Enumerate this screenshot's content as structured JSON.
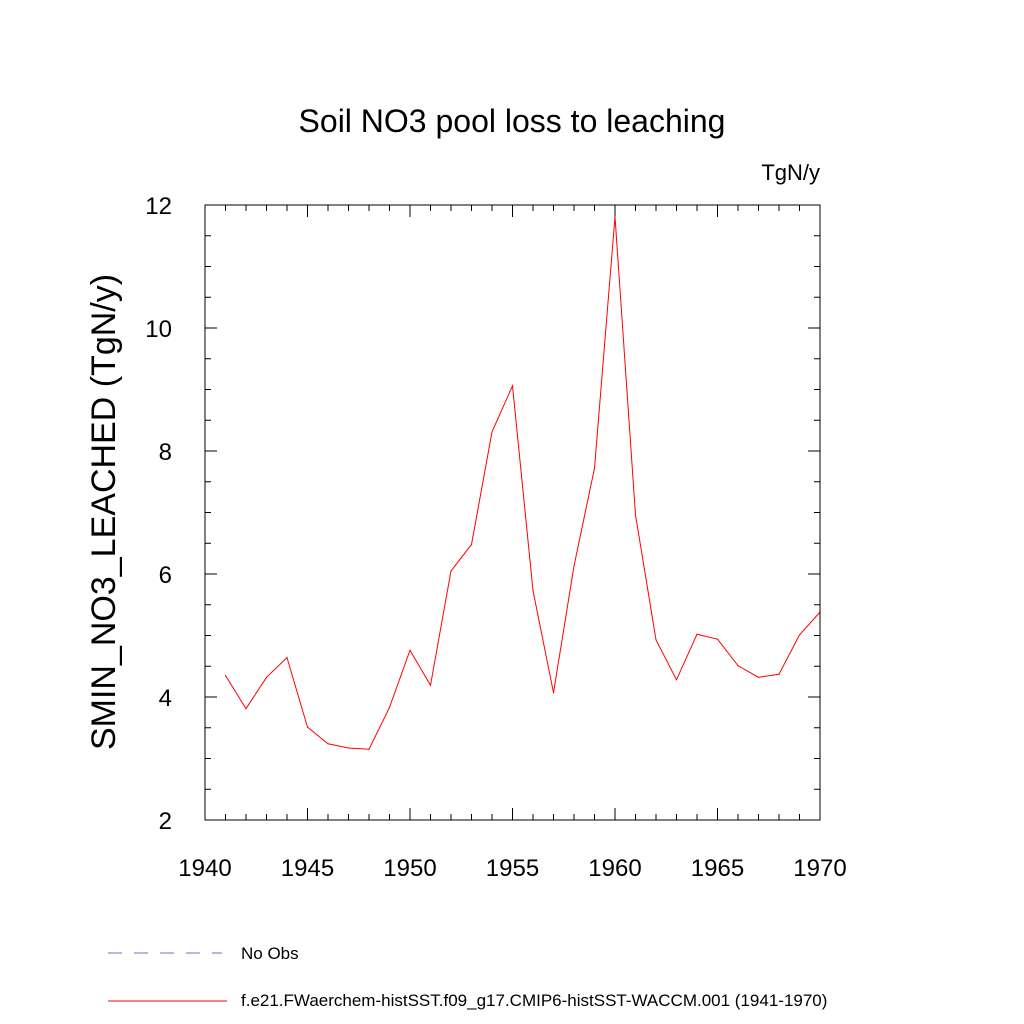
{
  "chart_data": {
    "type": "line",
    "title": "Soil NO3 pool loss to leaching",
    "units": "TgN/y",
    "xlabel": "",
    "ylabel": "SMIN_NO3_LEACHED  (TgN/y)",
    "xlim": [
      1940,
      1970
    ],
    "ylim": [
      2,
      12
    ],
    "x_ticks": [
      1940,
      1945,
      1950,
      1955,
      1960,
      1965,
      1970
    ],
    "x_tick_labels": [
      "1940",
      "1945",
      "1950",
      "1955",
      "1960",
      "1965",
      "1970"
    ],
    "y_ticks": [
      2,
      4,
      6,
      8,
      10,
      12
    ],
    "y_tick_labels": [
      "2",
      "4",
      "6",
      "8",
      "10",
      "12"
    ],
    "grid": false,
    "x": [
      1941,
      1942,
      1943,
      1944,
      1945,
      1946,
      1947,
      1948,
      1949,
      1950,
      1951,
      1952,
      1953,
      1954,
      1955,
      1956,
      1957,
      1958,
      1959,
      1960,
      1961,
      1962,
      1963,
      1964,
      1965,
      1966,
      1967,
      1968,
      1969,
      1970
    ],
    "series": [
      {
        "name": "f.e21.FWaerchem-histSST.f09_g17.CMIP6-histSST-WACCM.001 (1941-1970)",
        "color": "#ff0000",
        "style": "solid",
        "values": [
          4.35,
          3.81,
          4.32,
          4.64,
          3.51,
          3.24,
          3.17,
          3.15,
          3.83,
          4.76,
          4.19,
          6.05,
          6.48,
          8.31,
          9.06,
          5.73,
          4.07,
          6.13,
          7.72,
          11.81,
          6.96,
          4.93,
          4.28,
          5.02,
          4.94,
          4.51,
          4.32,
          4.37,
          5.01,
          5.38
        ]
      }
    ],
    "legend": {
      "placement": "bottom",
      "entries": [
        {
          "label": "No Obs",
          "color": "#7a6fb5",
          "style": "dashed"
        },
        {
          "label": "f.e21.FWaerchem-histSST.f09_g17.CMIP6-histSST-WACCM.001 (1941-1970)",
          "color": "#ff0000",
          "style": "solid"
        }
      ]
    }
  }
}
